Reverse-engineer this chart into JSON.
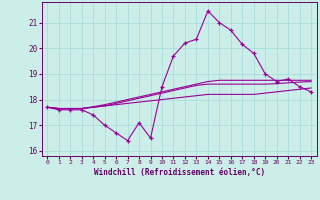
{
  "xlabel": "Windchill (Refroidissement éolien,°C)",
  "background_color": "#cceee8",
  "grid_color": "#aadddd",
  "line_color": "#990099",
  "x_hours": [
    0,
    1,
    2,
    3,
    4,
    5,
    6,
    7,
    8,
    9,
    10,
    11,
    12,
    13,
    14,
    15,
    16,
    17,
    18,
    19,
    20,
    21,
    22,
    23
  ],
  "y_windchill": [
    17.7,
    17.6,
    17.6,
    17.6,
    17.4,
    17.0,
    16.7,
    16.4,
    17.1,
    16.5,
    18.5,
    19.7,
    20.2,
    20.35,
    21.45,
    21.0,
    20.7,
    20.15,
    19.8,
    19.0,
    18.7,
    18.8,
    18.5,
    18.3
  ],
  "y_line2": [
    17.7,
    17.65,
    17.65,
    17.65,
    17.7,
    17.75,
    17.8,
    17.85,
    17.9,
    17.95,
    18.0,
    18.05,
    18.1,
    18.15,
    18.2,
    18.2,
    18.2,
    18.2,
    18.2,
    18.25,
    18.3,
    18.35,
    18.4,
    18.45
  ],
  "y_line3": [
    17.7,
    17.65,
    17.65,
    17.65,
    17.7,
    17.75,
    17.85,
    17.95,
    18.05,
    18.15,
    18.25,
    18.35,
    18.45,
    18.55,
    18.6,
    18.6,
    18.6,
    18.6,
    18.6,
    18.6,
    18.62,
    18.65,
    18.68,
    18.7
  ],
  "y_line4": [
    17.7,
    17.65,
    17.65,
    17.65,
    17.72,
    17.8,
    17.9,
    18.0,
    18.1,
    18.2,
    18.3,
    18.4,
    18.5,
    18.6,
    18.7,
    18.75,
    18.75,
    18.75,
    18.75,
    18.75,
    18.75,
    18.75,
    18.75,
    18.75
  ],
  "ylim": [
    15.8,
    21.8
  ],
  "xlim": [
    -0.5,
    23.5
  ],
  "yticks": [
    16,
    17,
    18,
    19,
    20,
    21
  ],
  "xticks": [
    0,
    1,
    2,
    3,
    4,
    5,
    6,
    7,
    8,
    9,
    10,
    11,
    12,
    13,
    14,
    15,
    16,
    17,
    18,
    19,
    20,
    21,
    22,
    23
  ]
}
